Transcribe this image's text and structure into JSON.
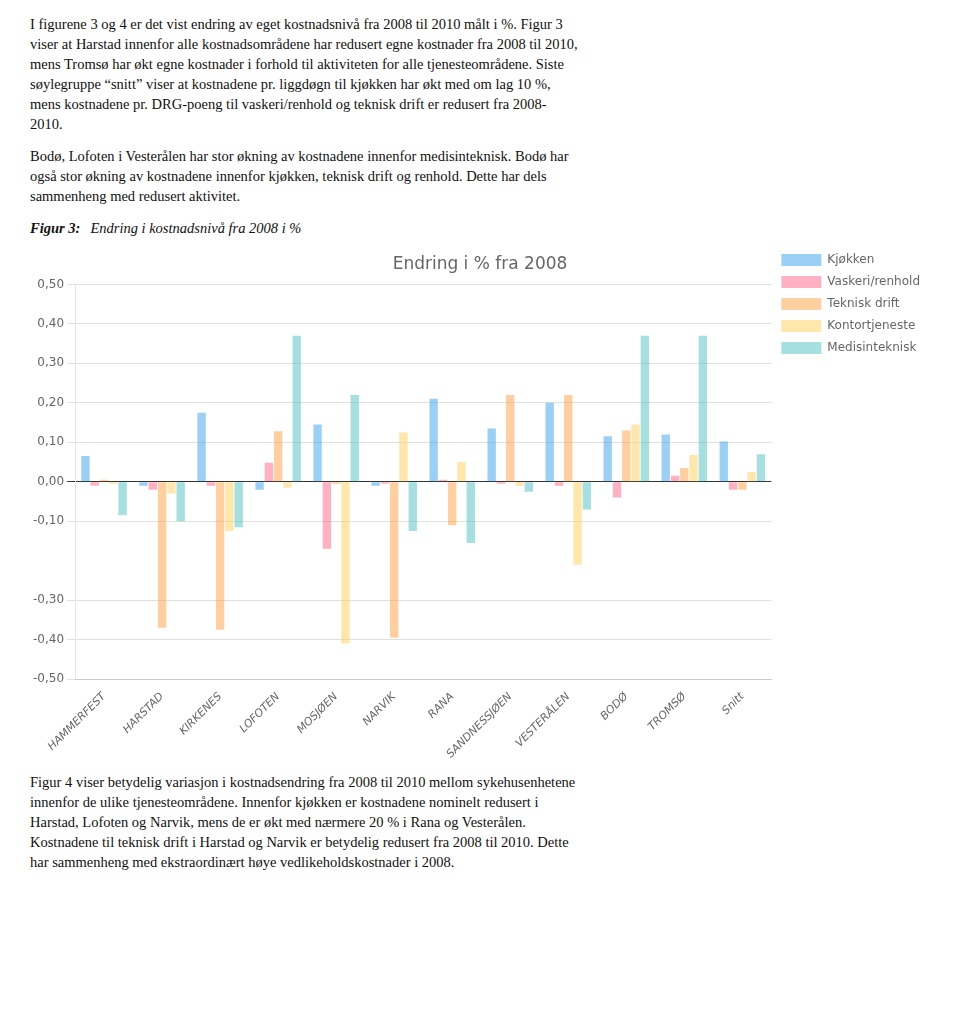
{
  "text_above": [
    [
      "I figurene 3 og 4 er det vist endring av eget kostnadsnivå fra 2008 til 2010 målt i %. Figur 3",
      "viser at Harstad innenfor alle kostnadsområdene har redusert egne kostnader fra 2008 til 2010,",
      "mens Tromsø har økt egne kostnader i forhold til aktiviteten for alle tjenesteområdene. Siste",
      "søylegruppe “snitt” viser at kostnadene pr. liggdøgn til kjøkken har økt med om lag 10 %,",
      "mens kostnadene pr. DRG-poeng til vaskeri/renhold og teknisk drift er redusert fra 2008-",
      "2010."
    ],
    [
      "Bodø, Lofoten i Vesterålen har stor økning av kostnadene innenfor medisinteknisk. Bodø har",
      "også stor økning av kostnadene innenfor kjøkken, teknisk drift og renhold. Dette har dels",
      "sammenheng med redusert aktivitet."
    ]
  ],
  "caption": {
    "label": "Figur 3:",
    "text": "Endring i kostnadsnivå fra 2008 i %"
  },
  "chart_data": {
    "type": "bar",
    "title": "Endring i % fra 2008",
    "categories": [
      "HAMMERFEST",
      "HARSTAD",
      "KIRKENES",
      "LOFOTEN",
      "MOSJØEN",
      "NARVIK",
      "RANA",
      "SANDNESSJØEN",
      "VESTERÅLEN",
      "BODØ",
      "TROMSØ",
      "Snitt"
    ],
    "series": [
      {
        "name": "Kjøkken",
        "values": [
          0.065,
          -0.01,
          0.175,
          -0.02,
          0.145,
          -0.01,
          0.21,
          0.135,
          0.2,
          0.115,
          0.12,
          0.102
        ]
      },
      {
        "name": "Vaskeri/renhold",
        "values": [
          -0.01,
          -0.02,
          -0.01,
          0.048,
          -0.17,
          -0.005,
          0.005,
          -0.005,
          -0.01,
          -0.04,
          0.015,
          -0.02
        ]
      },
      {
        "name": "Teknisk drift",
        "values": [
          0.005,
          -0.37,
          -0.375,
          0.128,
          -0.005,
          -0.395,
          -0.11,
          0.22,
          0.22,
          0.13,
          0.035,
          -0.02
        ]
      },
      {
        "name": "Kontortjeneste",
        "values": [
          -0.005,
          -0.03,
          -0.125,
          -0.015,
          -0.41,
          0.125,
          0.05,
          -0.01,
          -0.21,
          0.145,
          0.068,
          0.025
        ]
      },
      {
        "name": "Medisinteknisk",
        "values": [
          -0.085,
          -0.1,
          -0.115,
          0.37,
          0.22,
          -0.125,
          -0.155,
          -0.025,
          -0.07,
          0.37,
          0.37,
          0.07
        ]
      }
    ],
    "ylim": [
      -0.5,
      0.5
    ],
    "yticks": [
      {
        "value": -0.5,
        "label": "-0,50"
      },
      {
        "value": -0.4,
        "label": "-0,40"
      },
      {
        "value": -0.3,
        "label": "-0,30"
      },
      {
        "value": -0.1,
        "label": "-0,10"
      },
      {
        "value": 0.0,
        "label": "0,00"
      },
      {
        "value": 0.1,
        "label": "0,10"
      },
      {
        "value": 0.2,
        "label": "0,20"
      },
      {
        "value": 0.3,
        "label": "0,30"
      },
      {
        "value": 0.4,
        "label": "0,40"
      },
      {
        "value": 0.5,
        "label": "0,50"
      }
    ],
    "grid": true,
    "legend": "right"
  },
  "text_below": [
    [
      "Figur 4 viser betydelig variasjon i kostnadsendring fra 2008 til 2010 mellom sykehusenhetene",
      "innenfor de ulike tjenesteområdene. Innenfor kjøkken er kostnadene nominelt redusert i",
      "Harstad, Lofoten og Narvik, mens de er økt med nærmere 20 % i Rana og Vesterålen.",
      "Kostnadene til teknisk drift i Harstad og Narvik er betydelig redusert fra 2008 til 2010. Dette",
      "har sammenheng med ekstraordinært høye vedlikeholdskostnader i 2008."
    ]
  ]
}
